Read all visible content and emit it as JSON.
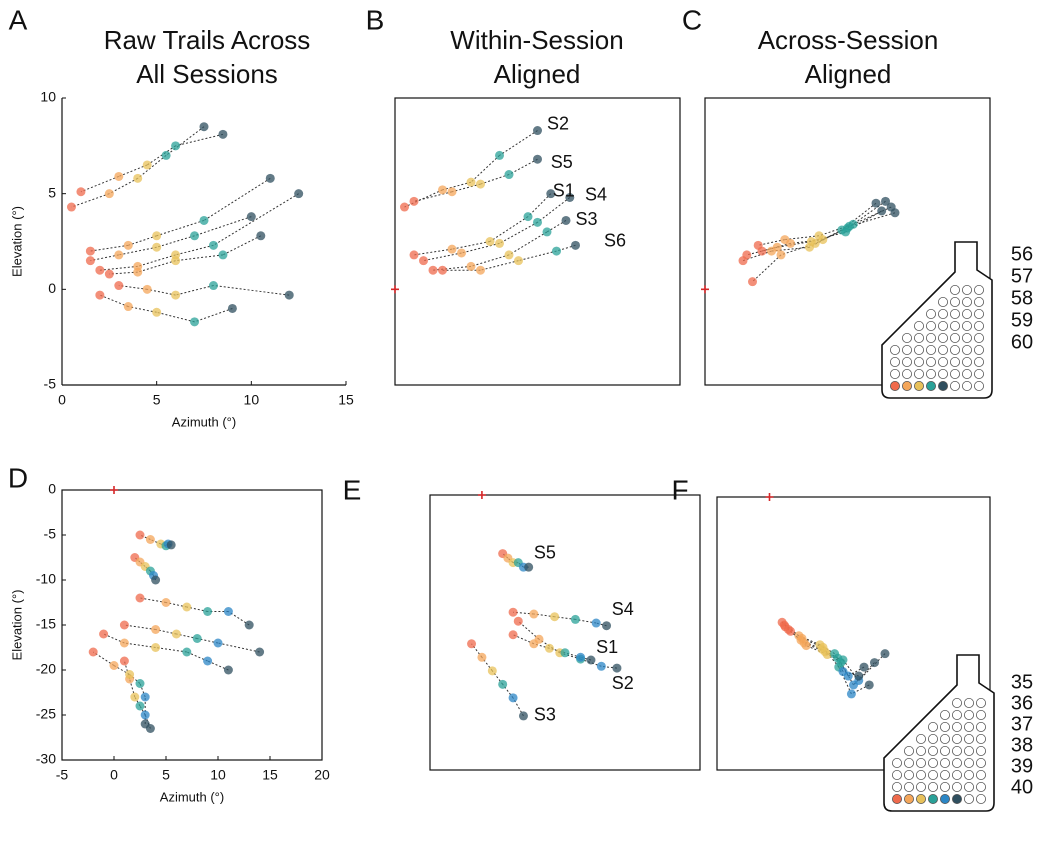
{
  "chart_data": [
    {
      "type": "scatter",
      "panel": "A",
      "title": [
        "Raw Trails Across",
        "All Sessions"
      ],
      "xlabel": "Azimuth (°)",
      "ylabel": "Elevation (°)",
      "xlim": [
        0,
        15
      ],
      "ylim": [
        -5,
        10
      ],
      "xticks": [
        0,
        5,
        10,
        15
      ],
      "yticks": [
        -5,
        0,
        5,
        10
      ],
      "box": false,
      "legend": false,
      "trails": true,
      "series": [
        {
          "name": "56",
          "color": "#2f4f5f",
          "x": [
            7.5,
            8.5,
            11,
            10,
            12.5,
            10.5,
            12,
            9
          ],
          "values": [
            8.5,
            8.1,
            5.8,
            3.8,
            5.0,
            2.8,
            -0.3,
            -1.0
          ]
        },
        {
          "name": "57",
          "color": "#2aa198",
          "x": [
            5.5,
            6,
            7.5,
            7,
            8,
            8.5,
            8,
            7
          ],
          "values": [
            7.0,
            7.5,
            3.6,
            2.8,
            2.3,
            1.8,
            0.2,
            -1.7
          ]
        },
        {
          "name": "58",
          "color": "#e8c15a",
          "x": [
            4,
            4.5,
            5,
            5,
            6,
            6,
            6,
            5
          ],
          "values": [
            5.8,
            6.5,
            2.8,
            2.2,
            1.8,
            1.5,
            -0.3,
            -1.2
          ]
        },
        {
          "name": "59",
          "color": "#f4a65a",
          "x": [
            2.5,
            3,
            3.5,
            3,
            4,
            4,
            4.5,
            3.5
          ],
          "values": [
            5.0,
            5.9,
            2.3,
            1.8,
            1.2,
            0.9,
            0.0,
            -0.9
          ]
        },
        {
          "name": "60",
          "color": "#ef6a4c",
          "x": [
            0.5,
            1,
            1.5,
            1.5,
            2,
            2.5,
            3,
            2
          ],
          "values": [
            4.3,
            5.1,
            2.0,
            1.5,
            1.0,
            0.8,
            0.2,
            -0.3
          ]
        }
      ]
    },
    {
      "type": "scatter",
      "panel": "B",
      "title": [
        "Within-Session",
        "Aligned"
      ],
      "xlim": [
        0,
        15
      ],
      "ylim": [
        -5,
        10
      ],
      "box": true,
      "legend": false,
      "trails": true,
      "origin_mark": "#d62728",
      "annotations": [
        {
          "text": "S2",
          "x": 8,
          "y": 8.6
        },
        {
          "text": "S5",
          "x": 8.2,
          "y": 6.6
        },
        {
          "text": "S1",
          "x": 8.3,
          "y": 5.1
        },
        {
          "text": "S4",
          "x": 10,
          "y": 4.9
        },
        {
          "text": "S3",
          "x": 9.5,
          "y": 3.6
        },
        {
          "text": "S6",
          "x": 11,
          "y": 2.5
        }
      ],
      "series": [
        {
          "name": "56",
          "color": "#2f4f5f",
          "x": [
            7.5,
            7.5,
            8.2,
            9.2,
            9,
            9.5
          ],
          "values": [
            8.3,
            6.8,
            5.0,
            4.8,
            3.6,
            2.3
          ]
        },
        {
          "name": "57",
          "color": "#2aa198",
          "x": [
            5.5,
            6,
            7,
            7.5,
            8,
            8.5
          ],
          "values": [
            7.0,
            6.0,
            3.8,
            3.5,
            3.0,
            2.0
          ]
        },
        {
          "name": "58",
          "color": "#e8c15a",
          "x": [
            4,
            4.5,
            5,
            5.5,
            6,
            6.5
          ],
          "values": [
            5.6,
            5.5,
            2.5,
            2.4,
            1.8,
            1.5
          ]
        },
        {
          "name": "59",
          "color": "#f4a65a",
          "x": [
            2.5,
            3,
            3,
            3.5,
            4,
            4.5
          ],
          "values": [
            5.2,
            5.1,
            2.1,
            1.9,
            1.2,
            1.0
          ]
        },
        {
          "name": "60",
          "color": "#ef6a4c",
          "x": [
            0.5,
            1,
            1,
            1.5,
            2,
            2.5
          ],
          "values": [
            4.3,
            4.6,
            1.8,
            1.5,
            1.0,
            1.0
          ]
        }
      ]
    },
    {
      "type": "scatter",
      "panel": "C",
      "title": [
        "Across-Session",
        "Aligned"
      ],
      "xlim": [
        0,
        15
      ],
      "ylim": [
        -5,
        10
      ],
      "box": true,
      "legend": true,
      "trails": true,
      "origin_mark": "#d62728",
      "series": [
        {
          "name": "56",
          "color": "#2f4f5f",
          "x": [
            9.3,
            9.8,
            9.0,
            10,
            9.5
          ],
          "values": [
            4.1,
            4.3,
            4.5,
            4.0,
            4.6
          ]
        },
        {
          "name": "57",
          "color": "#2aa198",
          "x": [
            7.4,
            7.8,
            7.2,
            7.6,
            7.5
          ],
          "values": [
            3.0,
            3.4,
            3.1,
            3.3,
            3.2
          ]
        },
        {
          "name": "58",
          "color": "#e8c15a",
          "x": [
            5.6,
            6.0,
            5.5,
            6.2,
            5.8
          ],
          "values": [
            2.5,
            2.8,
            2.2,
            2.6,
            2.4
          ]
        },
        {
          "name": "59",
          "color": "#f4a65a",
          "x": [
            3.8,
            4.2,
            3.5,
            4.5,
            4
          ],
          "values": [
            2.2,
            2.6,
            2.0,
            2.4,
            1.8
          ]
        },
        {
          "name": "60",
          "color": "#ef6a4c",
          "x": [
            2.2,
            2.8,
            2.0,
            3.0,
            2.5
          ],
          "values": [
            1.8,
            2.3,
            1.5,
            2.0,
            0.4
          ]
        }
      ]
    },
    {
      "type": "scatter",
      "panel": "D",
      "xlabel": "Azimuth (°)",
      "ylabel": "Elevation (°)",
      "xlim": [
        -5,
        20
      ],
      "ylim": [
        -30,
        0
      ],
      "xticks": [
        -5,
        0,
        5,
        10,
        15,
        20
      ],
      "yticks": [
        -30,
        -25,
        -20,
        -15,
        -10,
        -5,
        0
      ],
      "box": true,
      "legend": false,
      "trails": true,
      "origin_mark": "#d62728",
      "series": [
        {
          "name": "35",
          "color": "#2f4f5f",
          "x": [
            5.5,
            4,
            13,
            14,
            11,
            3,
            3.5
          ],
          "values": [
            -6.1,
            -10,
            -15,
            -18,
            -20,
            -26,
            -26.5
          ]
        },
        {
          "name": "36",
          "color": "#2b86c5",
          "x": [
            5.2,
            3.8,
            11,
            10,
            9,
            3,
            3
          ],
          "values": [
            -6,
            -9.5,
            -13.5,
            -17,
            -19,
            -23,
            -25
          ]
        },
        {
          "name": "37",
          "color": "#2aa198",
          "x": [
            5,
            3.5,
            9,
            8,
            7,
            2.5,
            2.5
          ],
          "values": [
            -6.2,
            -9,
            -13.5,
            -16.5,
            -18,
            -21.5,
            -24
          ]
        },
        {
          "name": "38",
          "color": "#e8c15a",
          "x": [
            4.5,
            3,
            7,
            6,
            4,
            1.5,
            2
          ],
          "values": [
            -6,
            -8.5,
            -13,
            -16,
            -17.5,
            -20.5,
            -23
          ]
        },
        {
          "name": "39",
          "color": "#f4a65a",
          "x": [
            3.5,
            2.5,
            5,
            4,
            1,
            0,
            1.5
          ],
          "values": [
            -5.5,
            -8,
            -12.5,
            -15.5,
            -17,
            -19.5,
            -21
          ]
        },
        {
          "name": "40",
          "color": "#ef6a4c",
          "x": [
            2.5,
            2,
            2.5,
            1,
            -1,
            -2,
            1
          ],
          "values": [
            -5,
            -7.5,
            -12,
            -15,
            -16,
            -18,
            -19
          ]
        }
      ]
    },
    {
      "type": "scatter",
      "panel": "E",
      "xlim": [
        -5,
        21
      ],
      "ylim": [
        -30.5,
        0
      ],
      "box": true,
      "legend": false,
      "trails": true,
      "origin_mark": "#d62728",
      "annotations": [
        {
          "text": "S5",
          "x": 5,
          "y": -6.5
        },
        {
          "text": "S4",
          "x": 12.5,
          "y": -12.8
        },
        {
          "text": "S1",
          "x": 11,
          "y": -17
        },
        {
          "text": "S2",
          "x": 12.5,
          "y": -21
        },
        {
          "text": "S3",
          "x": 5,
          "y": -24.5
        }
      ],
      "series": [
        {
          "name": "35",
          "color": "#2f4f5f",
          "x": [
            4.5,
            12,
            10.5,
            13,
            4
          ],
          "values": [
            -8,
            -14.5,
            -18.3,
            -19.2,
            -24.5
          ]
        },
        {
          "name": "36",
          "color": "#2b86c5",
          "x": [
            4,
            11,
            9.5,
            11.5,
            3
          ],
          "values": [
            -8,
            -14.2,
            -18,
            -19,
            -22.5
          ]
        },
        {
          "name": "37",
          "color": "#2aa198",
          "x": [
            3.5,
            9,
            8,
            9.5,
            2
          ],
          "values": [
            -7.5,
            -13.8,
            -17.5,
            -18.2,
            -21
          ]
        },
        {
          "name": "38",
          "color": "#e8c15a",
          "x": [
            3,
            7,
            6.5,
            7.5,
            1
          ],
          "values": [
            -7.5,
            -13.5,
            -17,
            -17.5,
            -19.5
          ]
        },
        {
          "name": "39",
          "color": "#f4a65a",
          "x": [
            2.5,
            5,
            5,
            5.5,
            0
          ],
          "values": [
            -7,
            -13.2,
            -16.5,
            -16,
            -18
          ]
        },
        {
          "name": "40",
          "color": "#ef6a4c",
          "x": [
            2,
            3,
            3,
            3.5,
            -1
          ],
          "values": [
            -6.5,
            -13,
            -15.5,
            -14,
            -16.5
          ]
        }
      ]
    },
    {
      "type": "scatter",
      "panel": "F",
      "xlim": [
        -5,
        21
      ],
      "ylim": [
        -30.5,
        0
      ],
      "box": true,
      "legend": true,
      "trails": true,
      "origin_mark": "#d62728",
      "series": [
        {
          "name": "35",
          "color": "#2f4f5f",
          "x": [
            9,
            10,
            8.5,
            11,
            9.5
          ],
          "values": [
            -19,
            -18.5,
            -20,
            -17.5,
            -21
          ]
        },
        {
          "name": "36",
          "color": "#2b86c5",
          "x": [
            7.5,
            8,
            7,
            8.5,
            7.8
          ],
          "values": [
            -20,
            -21,
            -19.5,
            -20.5,
            -22
          ]
        },
        {
          "name": "37",
          "color": "#2aa198",
          "x": [
            6.5,
            6.8,
            6.2,
            7,
            6.6
          ],
          "values": [
            -18,
            -18.5,
            -17.5,
            -18.2,
            -19
          ]
        },
        {
          "name": "38",
          "color": "#e8c15a",
          "x": [
            5,
            5.3,
            4.8,
            5.5,
            5.1
          ],
          "values": [
            -17,
            -17.3,
            -16.5,
            -17.6,
            -16.8
          ]
        },
        {
          "name": "39",
          "color": "#f4a65a",
          "x": [
            3,
            3.3,
            2.8,
            3.5,
            3.1
          ],
          "values": [
            -16,
            -16.3,
            -15.5,
            -16.6,
            -15.8
          ]
        },
        {
          "name": "40",
          "color": "#ef6a4c",
          "x": [
            1.5,
            1.8,
            1.2,
            2,
            1.4
          ],
          "values": [
            -14.5,
            -14.8,
            -14,
            -15,
            -14.3
          ]
        }
      ]
    }
  ]
}
